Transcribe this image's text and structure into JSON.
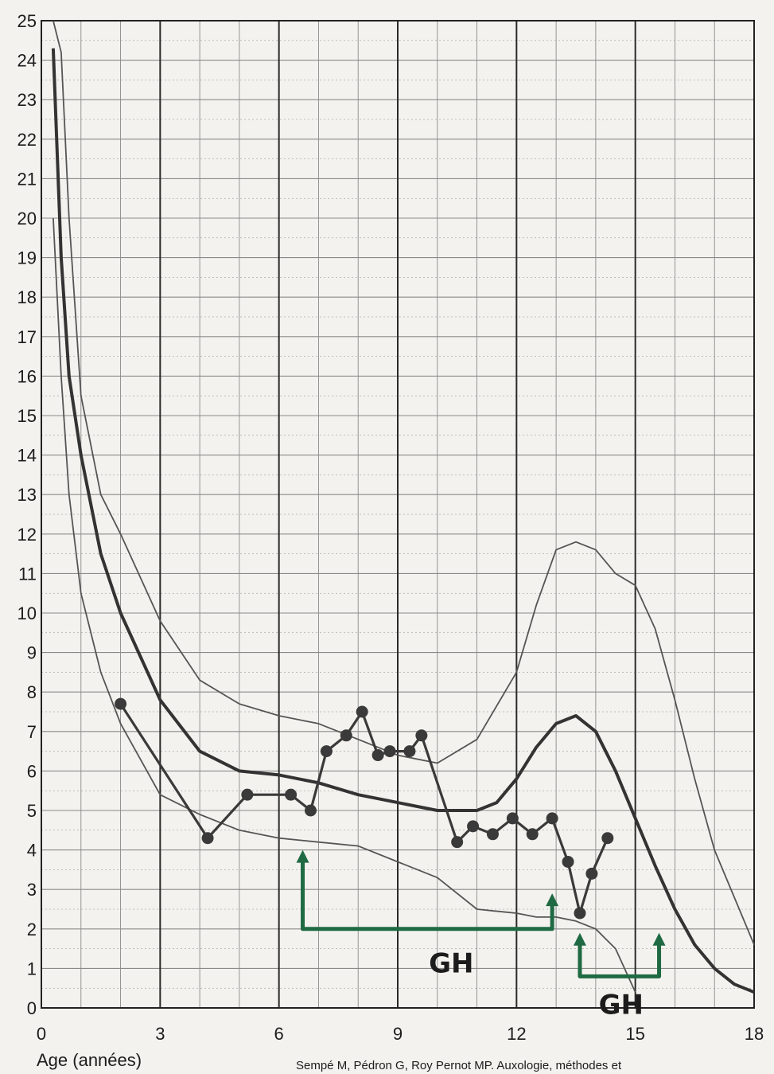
{
  "chart_data": {
    "type": "line",
    "xlabel": "Age (années)",
    "ylabel": "",
    "xlim": [
      0,
      18
    ],
    "ylim": [
      0,
      25
    ],
    "x_ticks": [
      "0",
      "3",
      "6",
      "9",
      "12",
      "15",
      "18"
    ],
    "y_ticks": [
      "0",
      "1",
      "2",
      "3",
      "4",
      "5",
      "6",
      "7",
      "8",
      "9",
      "10",
      "11",
      "12",
      "13",
      "14",
      "15",
      "16",
      "17",
      "18",
      "19",
      "20",
      "21",
      "22",
      "23",
      "24",
      "25"
    ],
    "grid": true,
    "source_note": "Sempé M, Pédron G, Roy Pernot MP. Auxologie, méthodes et",
    "series": [
      {
        "role": "reference-upper",
        "x": [
          0.3,
          0.5,
          0.7,
          1.0,
          1.5,
          2.0,
          3.0,
          4.0,
          5.0,
          6.0,
          7.0,
          8.0,
          9.0,
          10.0,
          11.0,
          12.0,
          12.5,
          13.0,
          13.5,
          14.0,
          14.5,
          15.0,
          15.5,
          16.0,
          16.5,
          17.0,
          17.5,
          18.0
        ],
        "y": [
          25.0,
          24.2,
          20.0,
          15.5,
          13.0,
          12.0,
          9.8,
          8.3,
          7.7,
          7.4,
          7.2,
          6.8,
          6.4,
          6.2,
          6.8,
          8.5,
          10.2,
          11.6,
          11.8,
          11.6,
          11.0,
          10.7,
          9.6,
          7.8,
          5.8,
          4.0,
          2.8,
          1.6
        ]
      },
      {
        "role": "reference-median",
        "x": [
          0.3,
          0.5,
          0.7,
          1.0,
          1.5,
          2.0,
          3.0,
          4.0,
          5.0,
          6.0,
          7.0,
          8.0,
          9.0,
          10.0,
          11.0,
          11.5,
          12.0,
          12.5,
          13.0,
          13.5,
          14.0,
          14.5,
          15.0,
          15.5,
          16.0,
          16.5,
          17.0,
          17.5,
          18.0
        ],
        "y": [
          24.3,
          19.0,
          16.0,
          14.0,
          11.5,
          10.0,
          7.8,
          6.5,
          6.0,
          5.9,
          5.7,
          5.4,
          5.2,
          5.0,
          5.0,
          5.2,
          5.8,
          6.6,
          7.2,
          7.4,
          7.0,
          6.0,
          4.8,
          3.6,
          2.5,
          1.6,
          1.0,
          0.6,
          0.4
        ]
      },
      {
        "role": "reference-lower",
        "x": [
          0.3,
          0.5,
          0.7,
          1.0,
          1.5,
          2.0,
          3.0,
          4.0,
          5.0,
          6.0,
          7.0,
          8.0,
          9.0,
          10.0,
          11.0,
          12.0,
          12.5,
          13.0,
          13.5,
          14.0,
          14.5,
          15.0
        ],
        "y": [
          20.0,
          16.0,
          13.0,
          10.5,
          8.5,
          7.2,
          5.4,
          4.9,
          4.5,
          4.3,
          4.2,
          4.1,
          3.7,
          3.3,
          2.5,
          2.4,
          2.3,
          2.3,
          2.2,
          2.0,
          1.5,
          0.4
        ]
      },
      {
        "role": "patient",
        "x": [
          2.0,
          4.2,
          5.2,
          6.3,
          6.8,
          7.2,
          7.7,
          8.1,
          8.5,
          8.8,
          9.3,
          9.6,
          10.5,
          10.9,
          11.4,
          11.9,
          12.4,
          12.9,
          13.3,
          13.6,
          13.9,
          14.3
        ],
        "y": [
          7.7,
          4.3,
          5.4,
          5.4,
          5.0,
          6.5,
          6.9,
          7.5,
          6.4,
          6.5,
          6.5,
          6.9,
          4.2,
          4.6,
          4.4,
          4.8,
          4.4,
          4.8,
          3.7,
          2.4,
          3.4,
          4.3
        ]
      }
    ],
    "annotations": [
      {
        "text": "GH",
        "x_from": 6.6,
        "x_to": 12.9
      },
      {
        "text": "GH",
        "x_from": 13.6,
        "x_to": 15.6
      }
    ],
    "colors": {
      "paper": "#f3f2ee",
      "grid_major": "#2a2a2a",
      "grid_minor": "#8a8a8a",
      "reference_outer": "#555555",
      "reference_median": "#333333",
      "patient": "#3a3a3a",
      "annotation": "#1f6a43"
    }
  }
}
